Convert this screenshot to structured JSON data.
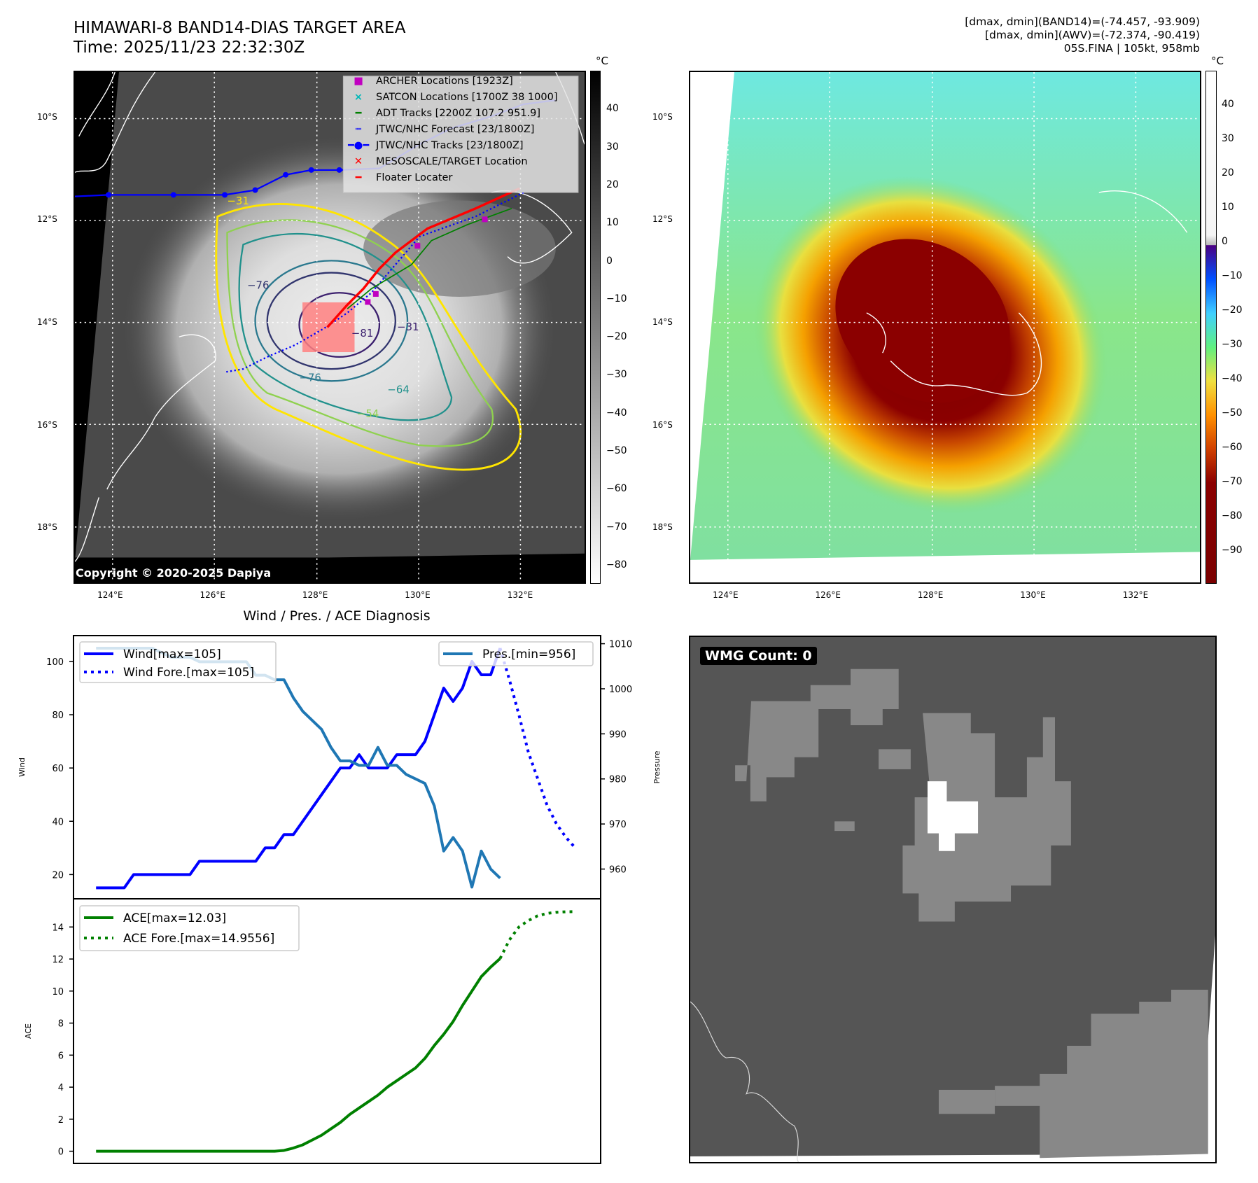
{
  "header": {
    "title": "HIMAWARI-8 BAND14-DIAS TARGET AREA",
    "time": "Time: 2025/11/23 22:32:30Z",
    "info_lines": [
      "[dmax, dmin](BAND14)=(-74.457, -93.909)",
      "[dmax, dmin](AWV)=(-72.374, -90.419)",
      "05S.FINA | 105kt, 958mb"
    ]
  },
  "maps": {
    "unit": "°C",
    "lat_labels": [
      "10°S",
      "12°S",
      "14°S",
      "16°S",
      "18°S"
    ],
    "lon_labels": [
      "124°E",
      "126°E",
      "128°E",
      "130°E",
      "132°E"
    ],
    "left_colorbar_ticks": [
      "40",
      "30",
      "20",
      "10",
      "0",
      "−10",
      "−20",
      "−30",
      "−40",
      "−50",
      "−60",
      "−70",
      "−80"
    ],
    "right_colorbar_ticks": [
      "40",
      "30",
      "20",
      "10",
      "0",
      "−10",
      "−20",
      "−30",
      "−40",
      "−50",
      "−60",
      "−70",
      "−80",
      "−90"
    ],
    "copyright": "Copyright © 2020-2025 Dapiya",
    "contour_labels": [
      "−31",
      "−76",
      "−81",
      "−76",
      "−64",
      "−54",
      "−31"
    ],
    "legend": [
      {
        "label": "ARCHER Locations [1923Z]",
        "color": "#c000c0"
      },
      {
        "label": "SATCON Locations [1700Z 38 1000]",
        "color": "#00b8b8"
      },
      {
        "label": "ADT Tracks [2200Z 107.2 951.9]",
        "color": "#008000"
      },
      {
        "label": "JTWC/NHC Forecast [23/1800Z]",
        "color": "#0000ff"
      },
      {
        "label": "JTWC/NHC Tracks [23/1800Z]",
        "color": "#0000ff"
      },
      {
        "label": "MESOSCALE/TARGET Location",
        "color": "#ff0000"
      },
      {
        "label": "Floater Locater",
        "color": "#ff0000"
      }
    ],
    "wmg_label": "WMG Count: 0"
  },
  "chart_data": [
    {
      "type": "line",
      "title": "Wind / Pres. / ACE Diagnosis",
      "ylabel": "Wind",
      "ylabel_right": "Pressure",
      "xlim": [
        -2.4,
        53.7
      ],
      "ylim": [
        10.9,
        109.7
      ],
      "ylim_right": [
        953.4,
        1011.8
      ],
      "yticks": [
        20,
        40,
        60,
        80,
        100
      ],
      "yticks_right": [
        960,
        970,
        980,
        990,
        1000,
        1010
      ],
      "legend_left": [
        "Wind[max=105]",
        "Wind Fore.[max=105]"
      ],
      "legend_right": [
        "Pres.[min=956]"
      ],
      "series": [
        {
          "name": "Wind",
          "color": "#0000ff",
          "style": "solid",
          "axis": "left",
          "x_start": 0,
          "values": [
            15,
            15,
            15,
            15,
            20,
            20,
            20,
            20,
            20,
            20,
            20,
            25,
            25,
            25,
            25,
            25,
            25,
            25,
            30,
            30,
            35,
            35,
            40,
            45,
            50,
            55,
            60,
            60,
            65,
            60,
            60,
            60,
            65,
            65,
            65,
            70,
            80,
            90,
            85,
            90,
            100,
            95,
            95,
            105
          ]
        },
        {
          "name": "Wind Fore.",
          "color": "#0000ff",
          "style": "dotted",
          "axis": "left",
          "x_start": 43,
          "values": [
            105,
            93,
            80,
            66,
            56,
            46,
            39,
            34,
            30
          ]
        },
        {
          "name": "Pres.",
          "color": "#1f77b4",
          "style": "solid",
          "axis": "right",
          "x_start": 0,
          "values": [
            1009,
            1009,
            1009,
            1009,
            1009,
            1009,
            1009,
            1008,
            1007,
            1007,
            1007,
            1006,
            1006,
            1006,
            1006,
            1006,
            1006,
            1003,
            1003,
            1002,
            1002,
            998,
            995,
            993,
            991,
            987,
            984,
            984,
            983,
            983,
            987,
            983,
            983,
            981,
            980,
            979,
            974,
            964,
            967,
            964,
            956,
            964,
            960,
            958
          ]
        }
      ]
    },
    {
      "type": "line",
      "ylabel": "ACE",
      "xlim": [
        -2.4,
        53.7
      ],
      "ylim": [
        -0.76,
        15.76
      ],
      "yticks": [
        0,
        2,
        4,
        6,
        8,
        10,
        12,
        14
      ],
      "legend": [
        "ACE[max=12.03]",
        "ACE Fore.[max=14.9556]"
      ],
      "series": [
        {
          "name": "ACE",
          "color": "#008000",
          "style": "solid",
          "x_start": 0,
          "values": [
            0,
            0,
            0,
            0,
            0,
            0,
            0,
            0,
            0,
            0,
            0,
            0,
            0,
            0,
            0,
            0,
            0,
            0,
            0,
            0,
            0.05,
            0.2,
            0.4,
            0.7,
            1.0,
            1.4,
            1.8,
            2.3,
            2.7,
            3.1,
            3.5,
            4.0,
            4.4,
            4.8,
            5.2,
            5.8,
            6.6,
            7.3,
            8.1,
            9.1,
            10.0,
            10.9,
            11.5,
            12.03
          ]
        },
        {
          "name": "ACE Fore.",
          "color": "#008000",
          "style": "dotted",
          "x_start": 43,
          "values": [
            12.03,
            13.2,
            14.0,
            14.4,
            14.7,
            14.85,
            14.92,
            14.95,
            14.96
          ]
        }
      ]
    }
  ]
}
